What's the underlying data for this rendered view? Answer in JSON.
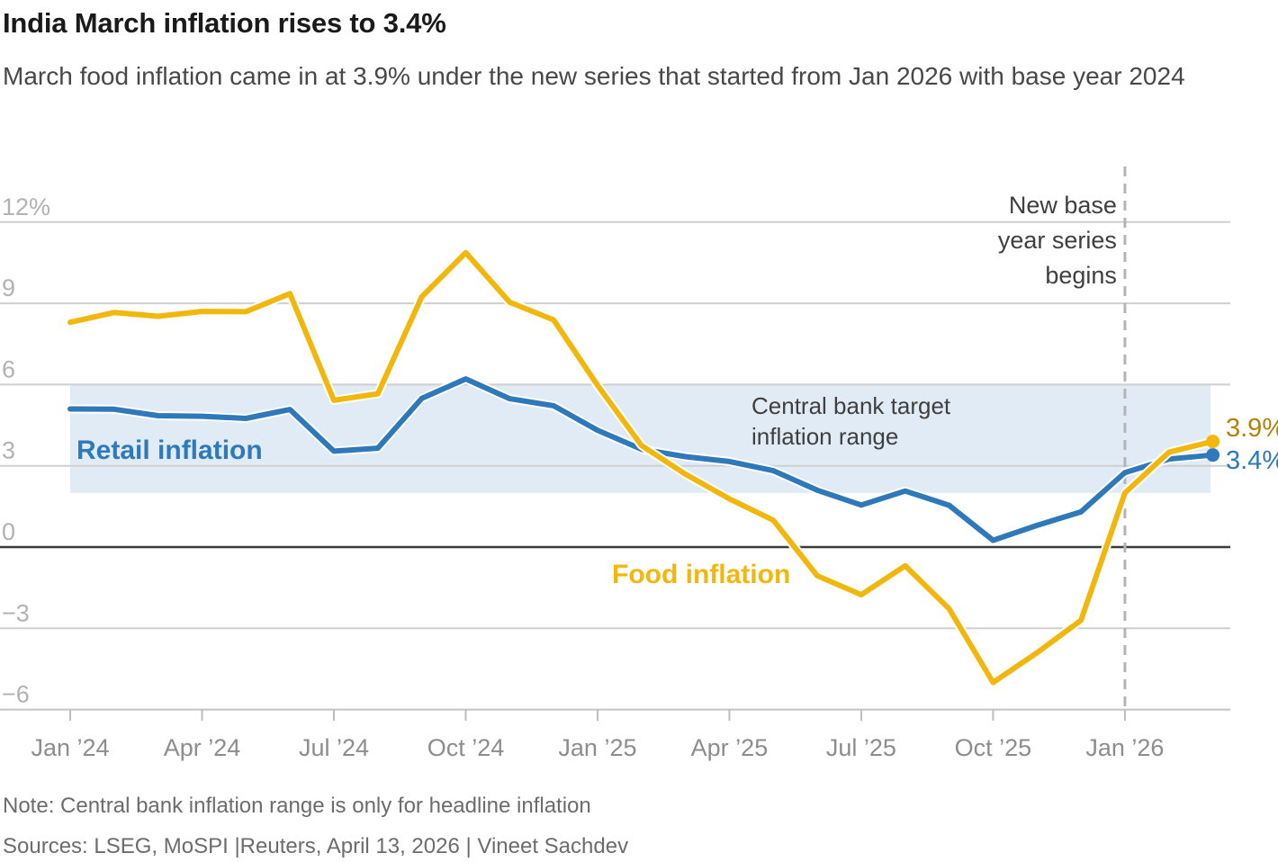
{
  "header": {
    "title": "India March inflation rises to 3.4%",
    "subtitle": "March food inflation came in at 3.9% under the new series that started from Jan 2026 with base year 2024"
  },
  "footer": {
    "note": "Note: Central bank inflation range is only for headline inflation",
    "sources": "Sources: LSEG, MoSPI |Reuters, April 13, 2026 | Vineet Sachdev"
  },
  "chart_data": {
    "type": "line",
    "title": "India March inflation rises to 3.4%",
    "unit": "percent",
    "grid": true,
    "ylim": [
      -6,
      12.7
    ],
    "x": [
      "Jan 2024",
      "Feb 2024",
      "Mar 2024",
      "Apr 2024",
      "May 2024",
      "Jun 2024",
      "Jul 2024",
      "Aug 2024",
      "Sep 2024",
      "Oct 2024",
      "Nov 2024",
      "Dec 2024",
      "Jan 2025",
      "Feb 2025",
      "Mar 2025",
      "Apr 2025",
      "May 2025",
      "Jun 2025",
      "Jul 2025",
      "Aug 2025",
      "Sep 2025",
      "Oct 2025",
      "Nov 2025",
      "Dec 2025",
      "Jan 2026",
      "Feb 2026",
      "Mar 2026"
    ],
    "x_tick_indices": [
      0,
      3,
      6,
      9,
      12,
      15,
      18,
      21,
      24
    ],
    "x_tick_labels": [
      "Jan ’24",
      "Apr ’24",
      "Jul ’24",
      "Oct ’24",
      "Jan ’25",
      "Apr ’25",
      "Jul ’25",
      "Oct ’25",
      "Jan ’26"
    ],
    "y_ticks": [
      {
        "value": 12,
        "label": "12%"
      },
      {
        "value": 9,
        "label": "9"
      },
      {
        "value": 6,
        "label": "6"
      },
      {
        "value": 3,
        "label": "3"
      },
      {
        "value": 0,
        "label": "0"
      },
      {
        "value": -3,
        "label": "−3"
      },
      {
        "value": -6,
        "label": "−6"
      }
    ],
    "series": [
      {
        "name": "Retail inflation",
        "color": "#2e79b9",
        "end_label": "3.4%",
        "end_label_color": "#2e79b9",
        "values": [
          5.1,
          5.09,
          4.85,
          4.83,
          4.75,
          5.08,
          3.54,
          3.65,
          5.49,
          6.21,
          5.48,
          5.22,
          4.31,
          3.61,
          3.34,
          3.16,
          2.82,
          2.1,
          1.55,
          2.07,
          1.54,
          0.25,
          0.8,
          1.3,
          2.75,
          3.25,
          3.4
        ]
      },
      {
        "name": "Food inflation",
        "color": "#f2b70d",
        "end_label": "3.9%",
        "end_label_color": "#b1830b",
        "values": [
          8.3,
          8.66,
          8.52,
          8.7,
          8.69,
          9.36,
          5.42,
          5.66,
          9.24,
          10.87,
          9.04,
          8.39,
          5.97,
          3.75,
          2.69,
          1.78,
          0.99,
          -1.06,
          -1.76,
          -0.69,
          -2.28,
          -5.0,
          -3.9,
          -2.7,
          2.0,
          3.5,
          3.9
        ]
      }
    ],
    "target_band": {
      "label": "Central bank target inflation range",
      "label_lines": [
        "Central bank target",
        "inflation range"
      ],
      "from": 2,
      "to": 6,
      "color": "#e0ebf5"
    },
    "event_line": {
      "x_index": 24,
      "label_lines": [
        "New base",
        "year series",
        "begins"
      ]
    }
  }
}
